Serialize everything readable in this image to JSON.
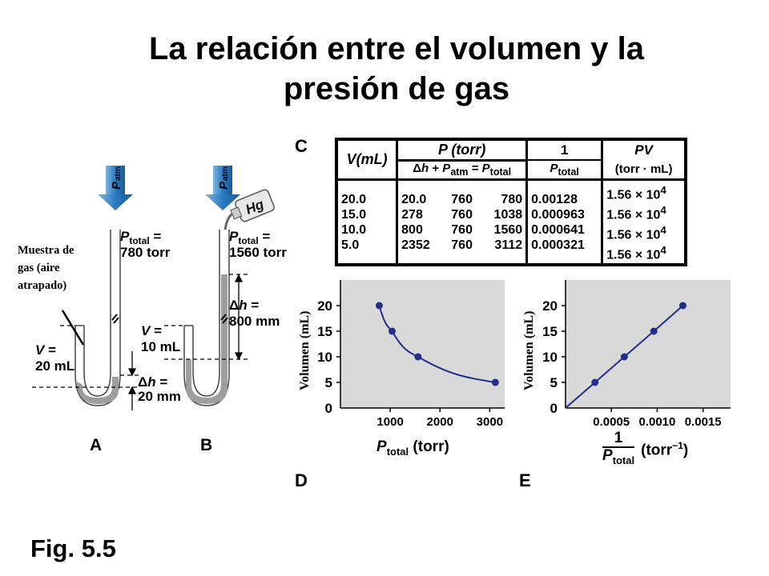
{
  "title_line1": "La relación entre el volumen y la",
  "title_line2": "presión de gas",
  "figure_label": "Fig. 5.5",
  "sample_annotation": [
    "Muestra de",
    "gas (aire",
    "atrapado)"
  ],
  "apparatus": {
    "A": {
      "label": "A",
      "patm": "atm",
      "ptotal_label": "total =",
      "ptotal_value": "780 torr",
      "v_value": "20 mL",
      "dh_value": "20 mm"
    },
    "B": {
      "label": "B",
      "patm": "atm",
      "hg": "Hg",
      "ptotal_label": "total =",
      "ptotal_value": "1560 torr",
      "v_value": "10 mL",
      "dh_value": "800 mm"
    }
  },
  "table": {
    "panel_label": "C",
    "headers": {
      "v": "V(mL)",
      "p": "P (torr)",
      "inv": "1",
      "pv": "PV",
      "pv_units": "(torr · mL)"
    },
    "rows": [
      {
        "v": "20.0",
        "dh": "20.0",
        "patm": "760",
        "ptotal": "780",
        "inv": "0.00128",
        "pv": "1.56 × 10",
        "exp": "4"
      },
      {
        "v": "15.0",
        "dh": "278",
        "patm": "760",
        "ptotal": "1038",
        "inv": "0.000963",
        "pv": "1.56 × 10",
        "exp": "4"
      },
      {
        "v": "10.0",
        "dh": "800",
        "patm": "760",
        "ptotal": "1560",
        "inv": "0.000641",
        "pv": "1.56 × 10",
        "exp": "4"
      },
      {
        "v": "5.0",
        "dh": "2352",
        "patm": "760",
        "ptotal": "3112",
        "inv": "0.000321",
        "pv": "1.56 × 10",
        "exp": "4"
      }
    ]
  },
  "chart_data": [
    {
      "panel": "D",
      "type": "line",
      "ylabel": "Volumen (mL)",
      "xlabel": "P total (torr)",
      "xlim": [
        0,
        3300
      ],
      "ylim": [
        0,
        25
      ],
      "xticks": [
        1000,
        2000,
        3000
      ],
      "yticks": [
        0,
        5,
        10,
        15,
        20
      ],
      "x": [
        780,
        1038,
        1560,
        3112
      ],
      "y": [
        20,
        15,
        10,
        5
      ]
    },
    {
      "panel": "E",
      "type": "line",
      "ylabel": "Volumen (mL)",
      "xlabel": "1/P total (torr−1)",
      "xlim": [
        0,
        0.0018
      ],
      "ylim": [
        0,
        25
      ],
      "xticks": [
        "0.0005",
        "0.0010",
        "0.0015"
      ],
      "yticks": [
        0,
        5,
        10,
        15,
        20
      ],
      "x": [
        0.000321,
        0.000641,
        0.000963,
        0.00128
      ],
      "y": [
        5,
        10,
        15,
        20
      ]
    }
  ]
}
